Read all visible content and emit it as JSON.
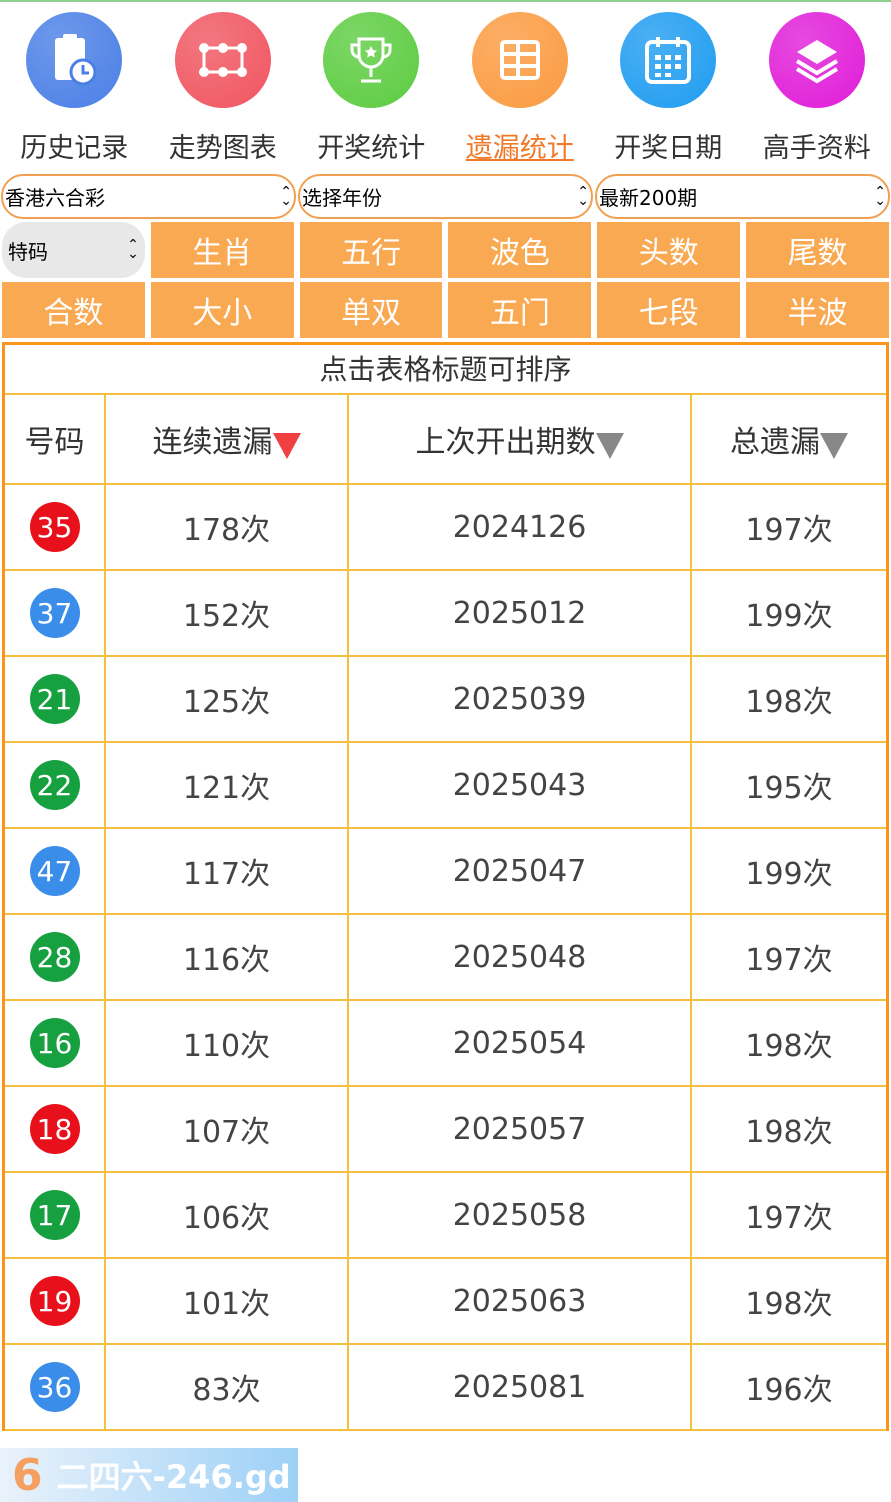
{
  "nav": [
    {
      "label": "历史记录",
      "icon": "clipboard-clock-icon",
      "color": "#4a7fe6",
      "active": false
    },
    {
      "label": "走势图表",
      "icon": "trend-chart-icon",
      "color": "#f05560",
      "active": false
    },
    {
      "label": "开奖统计",
      "icon": "trophy-icon",
      "color": "#5ccc40",
      "active": false
    },
    {
      "label": "遗漏统计",
      "icon": "table-icon",
      "color": "#fb9a40",
      "active": true
    },
    {
      "label": "开奖日期",
      "icon": "calendar-icon",
      "color": "#1e9cf0",
      "active": false
    },
    {
      "label": "高手资料",
      "icon": "layers-icon",
      "color": "#e01cd8",
      "active": false
    }
  ],
  "selects": {
    "lottery": "香港六合彩",
    "year": "选择年份",
    "period": "最新200期",
    "type": "特码"
  },
  "buttons": [
    "生肖",
    "五行",
    "波色",
    "头数",
    "尾数",
    "合数",
    "大小",
    "单双",
    "五门",
    "七段",
    "半波"
  ],
  "table": {
    "caption": "点击表格标题可排序",
    "headers": [
      "号码",
      "连续遗漏",
      "上次开出期数",
      "总遗漏"
    ],
    "rows": [
      {
        "num": "35",
        "color": "#e8101a",
        "miss": "178次",
        "last": "2024126",
        "total": "197次"
      },
      {
        "num": "37",
        "color": "#3a8eea",
        "miss": "152次",
        "last": "2025012",
        "total": "199次"
      },
      {
        "num": "21",
        "color": "#16a040",
        "miss": "125次",
        "last": "2025039",
        "total": "198次"
      },
      {
        "num": "22",
        "color": "#16a040",
        "miss": "121次",
        "last": "2025043",
        "total": "195次"
      },
      {
        "num": "47",
        "color": "#3a8eea",
        "miss": "117次",
        "last": "2025047",
        "total": "199次"
      },
      {
        "num": "28",
        "color": "#16a040",
        "miss": "116次",
        "last": "2025048",
        "total": "197次"
      },
      {
        "num": "16",
        "color": "#16a040",
        "miss": "110次",
        "last": "2025054",
        "total": "198次"
      },
      {
        "num": "18",
        "color": "#e8101a",
        "miss": "107次",
        "last": "2025057",
        "total": "198次"
      },
      {
        "num": "17",
        "color": "#16a040",
        "miss": "106次",
        "last": "2025058",
        "total": "197次"
      },
      {
        "num": "19",
        "color": "#e8101a",
        "miss": "101次",
        "last": "2025063",
        "total": "198次"
      },
      {
        "num": "36",
        "color": "#3a8eea",
        "miss": "83次",
        "last": "2025081",
        "total": "196次"
      }
    ]
  },
  "watermark": "二四六-246.gd"
}
